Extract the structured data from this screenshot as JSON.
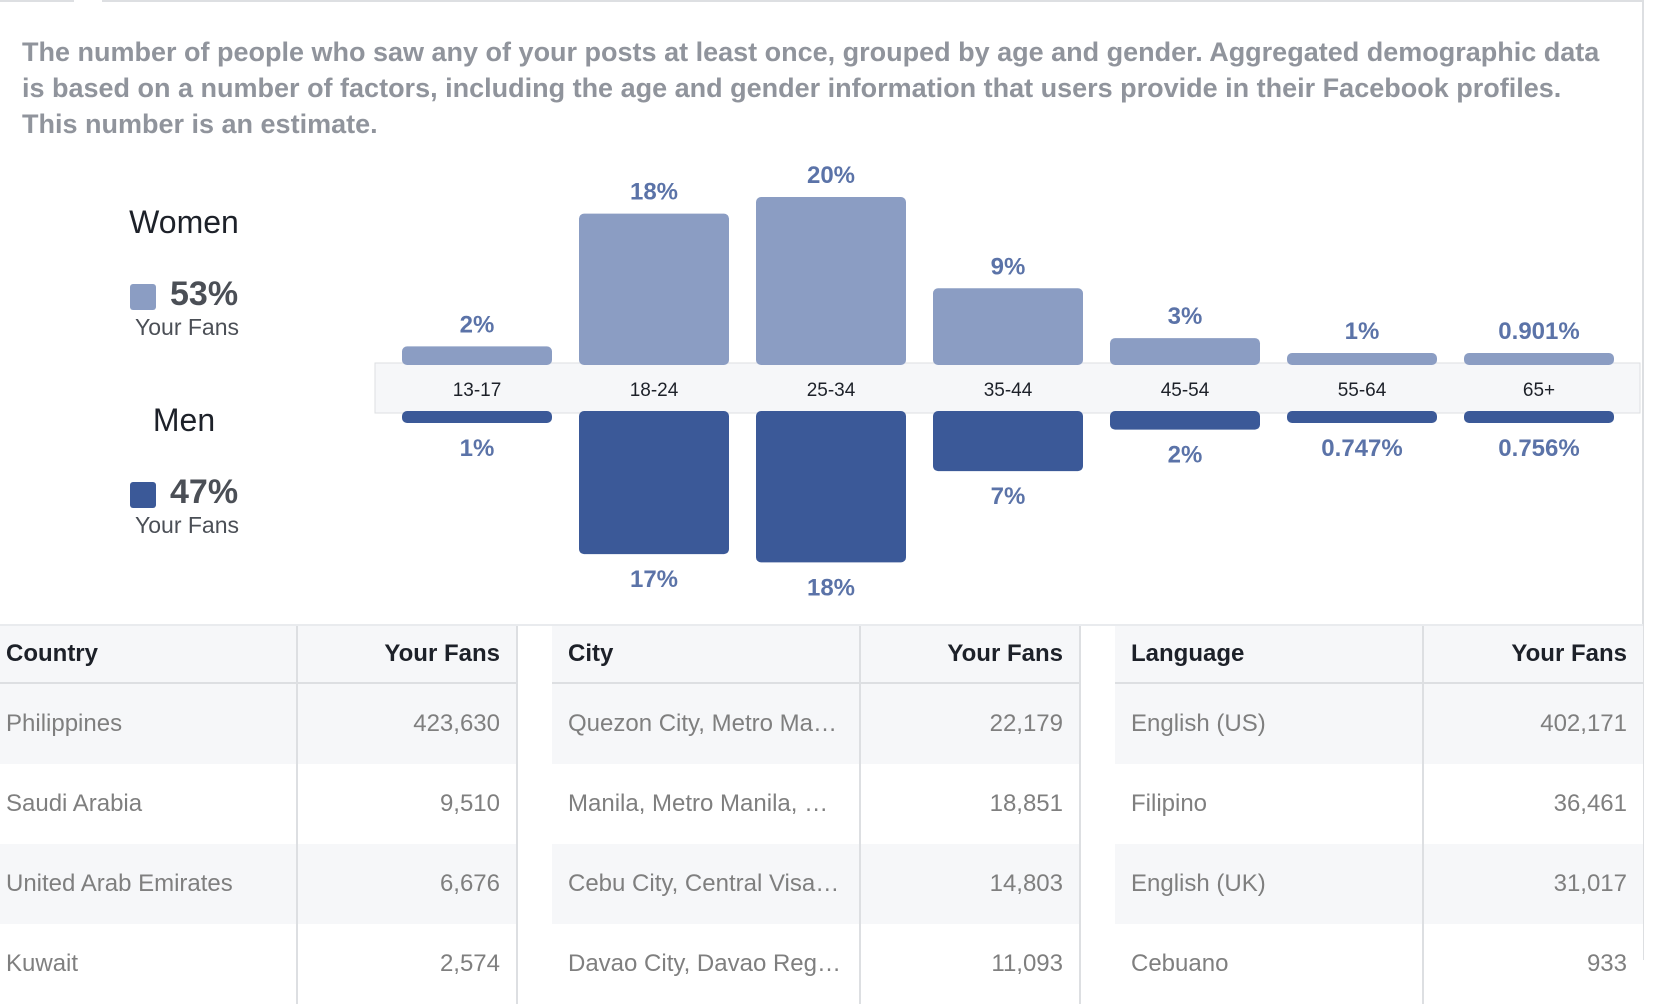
{
  "description": "The number of people who saw any of your posts at least once, grouped by age and gender. Aggregated demographic data is based on a number of factors, including the age and gender information that users provide in their Facebook profiles. This number is an estimate.",
  "legend": {
    "women": {
      "title": "Women",
      "percent": "53%",
      "sub": "Your Fans",
      "color": "#8b9dc3"
    },
    "men": {
      "title": "Men",
      "percent": "47%",
      "sub": "Your Fans",
      "color": "#3b5998"
    }
  },
  "chart_data": {
    "type": "bar",
    "categories": [
      "13-17",
      "18-24",
      "25-34",
      "35-44",
      "45-54",
      "55-64",
      "65+"
    ],
    "series": [
      {
        "name": "Women",
        "values": [
          2,
          18,
          20,
          9,
          3,
          1,
          0.901
        ],
        "labels": [
          "2%",
          "18%",
          "20%",
          "9%",
          "3%",
          "1%",
          "0.901%"
        ],
        "color": "#8b9dc3"
      },
      {
        "name": "Men",
        "values": [
          1,
          17,
          18,
          7,
          2,
          0.747,
          0.756
        ],
        "labels": [
          "1%",
          "17%",
          "18%",
          "7%",
          "2%",
          "0.747%",
          "0.756%"
        ],
        "color": "#3b5998"
      }
    ]
  },
  "tables": {
    "country": {
      "headers": [
        "Country",
        "Your Fans"
      ],
      "rows": [
        [
          "Philippines",
          "423,630"
        ],
        [
          "Saudi Arabia",
          "9,510"
        ],
        [
          "United Arab Emirates",
          "6,676"
        ],
        [
          "Kuwait",
          "2,574"
        ]
      ]
    },
    "city": {
      "headers": [
        "City",
        "Your Fans"
      ],
      "rows": [
        [
          "Quezon City, Metro Ma…",
          "22,179"
        ],
        [
          "Manila, Metro Manila, …",
          "18,851"
        ],
        [
          "Cebu City, Central Visa…",
          "14,803"
        ],
        [
          "Davao City, Davao Reg…",
          "11,093"
        ]
      ]
    },
    "language": {
      "headers": [
        "Language",
        "Your Fans"
      ],
      "rows": [
        [
          "English (US)",
          "402,171"
        ],
        [
          "Filipino",
          "36,461"
        ],
        [
          "English (UK)",
          "31,017"
        ],
        [
          "Cebuano",
          "933"
        ]
      ]
    }
  }
}
